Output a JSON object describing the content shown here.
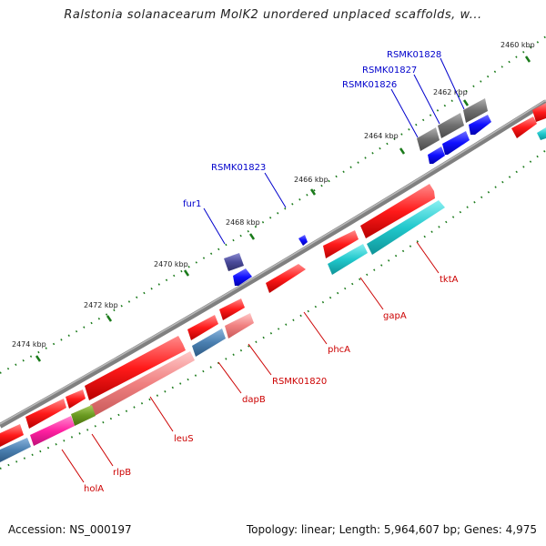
{
  "title": "Ralstonia solanacearum MolK2 unordered unplaced scaffolds, w...",
  "footer": {
    "accession": "Accession: NS_000197",
    "topology": "Topology: linear; Length: 5,964,607 bp; Genes: 4,975"
  },
  "ticks": [
    "2460 kbp",
    "2462 kbp",
    "2464 kbp",
    "2466 kbp",
    "2468 kbp",
    "2470 kbp",
    "2472 kbp",
    "2474 kbp"
  ],
  "gene_labels_top": [
    "RSMK01828",
    "RSMK01827",
    "RSMK01826",
    "RSMK01823",
    "fur1"
  ],
  "gene_labels_bottom": [
    "tktA",
    "gapA",
    "phcA",
    "RSMK01820",
    "dapB",
    "leuS",
    "rlpB",
    "holA"
  ],
  "colors": {
    "backbone": "#808080",
    "cds_red": "#ff1a1a",
    "rna_pink": "#f08080",
    "teal": "#20c8cc",
    "steel": "#4a7fb0",
    "magenta": "#ff20a0",
    "olive": "#6a9a20",
    "blue": "#1010ff",
    "gray": "#6e6e6e",
    "navy": "#4a4a9a",
    "tick_green": "#1a7a1a",
    "label_blue": "#0000cc",
    "label_red": "#cc0000"
  }
}
